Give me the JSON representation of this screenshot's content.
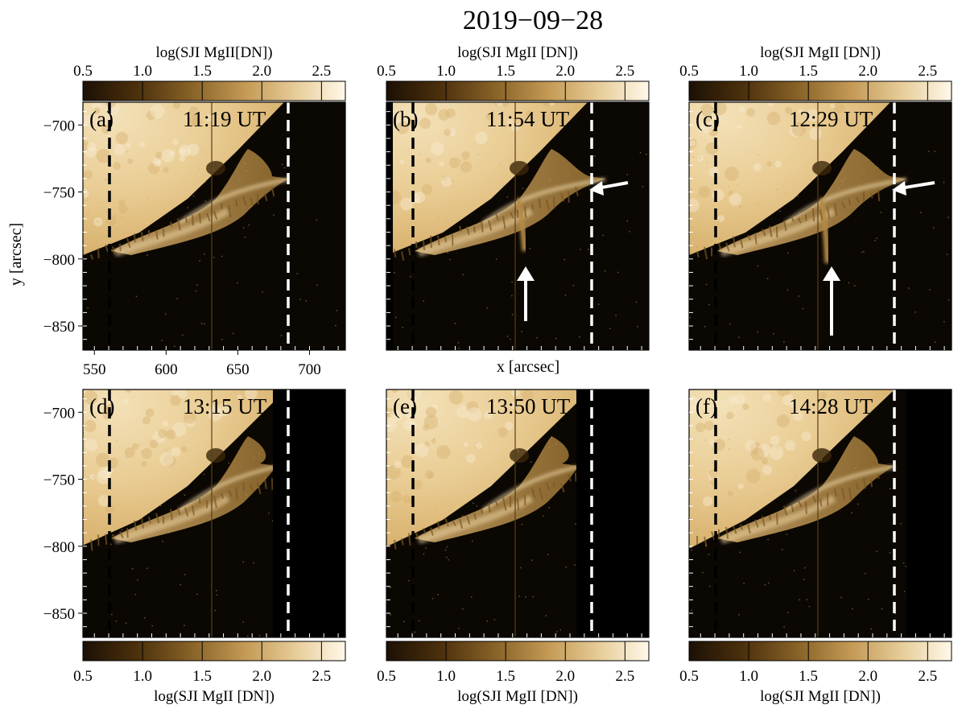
{
  "figure": {
    "title": "2019−09−28",
    "colorbar_label_top_left": "log(SJI MgII[DN])",
    "colorbar_label": "log(SJI MgII [DN])",
    "colorbar_ticks": [
      "0.5",
      "1.0",
      "1.5",
      "2.0",
      "2.5"
    ],
    "colorbar_range": [
      0.5,
      2.7
    ],
    "y_axis_label": "y [arcsec]",
    "x_axis_label": "x [arcsec]",
    "y_ticks": [
      "−700",
      "−750",
      "−800",
      "−850"
    ],
    "x_ticks": [
      "550",
      "600",
      "650",
      "700"
    ],
    "x_range_arcsec": [
      542,
      725
    ],
    "y_range_arcsec": [
      -683,
      -868
    ],
    "colormap": [
      "#1c1005",
      "#4a2f0b",
      "#8a6428",
      "#c49a55",
      "#e8cf9c",
      "#fff8ea"
    ],
    "dashed_line_colors": {
      "left": "#000000",
      "right": "#ffffff"
    },
    "panels": [
      {
        "label": "(a)",
        "time": "11:19 UT",
        "arrows": []
      },
      {
        "label": "(b)",
        "time": "11:54 UT",
        "arrows": [
          "left-pointing",
          "up-pointing"
        ]
      },
      {
        "label": "(c)",
        "time": "12:29 UT",
        "arrows": [
          "left-pointing",
          "up-pointing"
        ]
      },
      {
        "label": "(d)",
        "time": "13:15 UT",
        "arrows": []
      },
      {
        "label": "(e)",
        "time": "13:50 UT",
        "arrows": []
      },
      {
        "label": "(f)",
        "time": "14:28 UT",
        "arrows": []
      }
    ]
  }
}
